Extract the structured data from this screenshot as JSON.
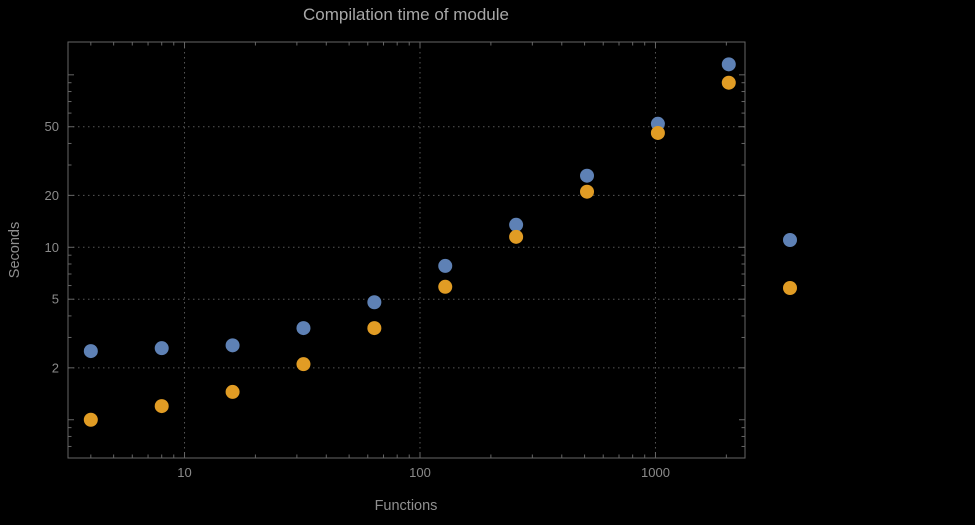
{
  "title": "Compilation time of module",
  "chart_data": {
    "type": "scatter",
    "title": "Compilation time of module",
    "xlabel": "Functions",
    "ylabel": "Seconds",
    "x_scale": "log",
    "y_scale": "log",
    "xlim": [
      3.2,
      2400
    ],
    "ylim": [
      0.6,
      155
    ],
    "grid": "dotted-at-major-ticks",
    "x_major_ticks": [
      10,
      100,
      1000
    ],
    "x_major_tick_labels": [
      "10",
      "100",
      "1000"
    ],
    "y_major_ticks": [
      2,
      5,
      10,
      20,
      50
    ],
    "y_major_tick_labels": [
      "2",
      "5",
      "10",
      "20",
      "50"
    ],
    "x": [
      4,
      8,
      16,
      32,
      64,
      128,
      256,
      512,
      1024,
      2048
    ],
    "series": [
      {
        "name": "series-1-blue",
        "color": "#5E81B5",
        "values": [
          2.5,
          2.6,
          2.7,
          3.4,
          4.8,
          7.8,
          13.5,
          26,
          52,
          115
        ]
      },
      {
        "name": "series-2-orange",
        "color": "#E19C24",
        "values": [
          1.0,
          1.2,
          1.45,
          2.1,
          3.4,
          5.9,
          11.5,
          21,
          46,
          90
        ]
      }
    ],
    "legend": {
      "position": "right-outside",
      "markers": [
        {
          "series": "series-1-blue",
          "color": "#5E81B5",
          "label": ""
        },
        {
          "series": "series-2-orange",
          "color": "#E19C24",
          "label": ""
        }
      ]
    }
  },
  "colors": {
    "background": "#000000",
    "frame": "#666666",
    "grid": "#575757",
    "title": "#a8a8a8",
    "axis_labels": "#8f8f8f",
    "tick_labels": "#8a8a8a",
    "series_blue": "#5E81B5",
    "series_orange": "#E19C24"
  }
}
